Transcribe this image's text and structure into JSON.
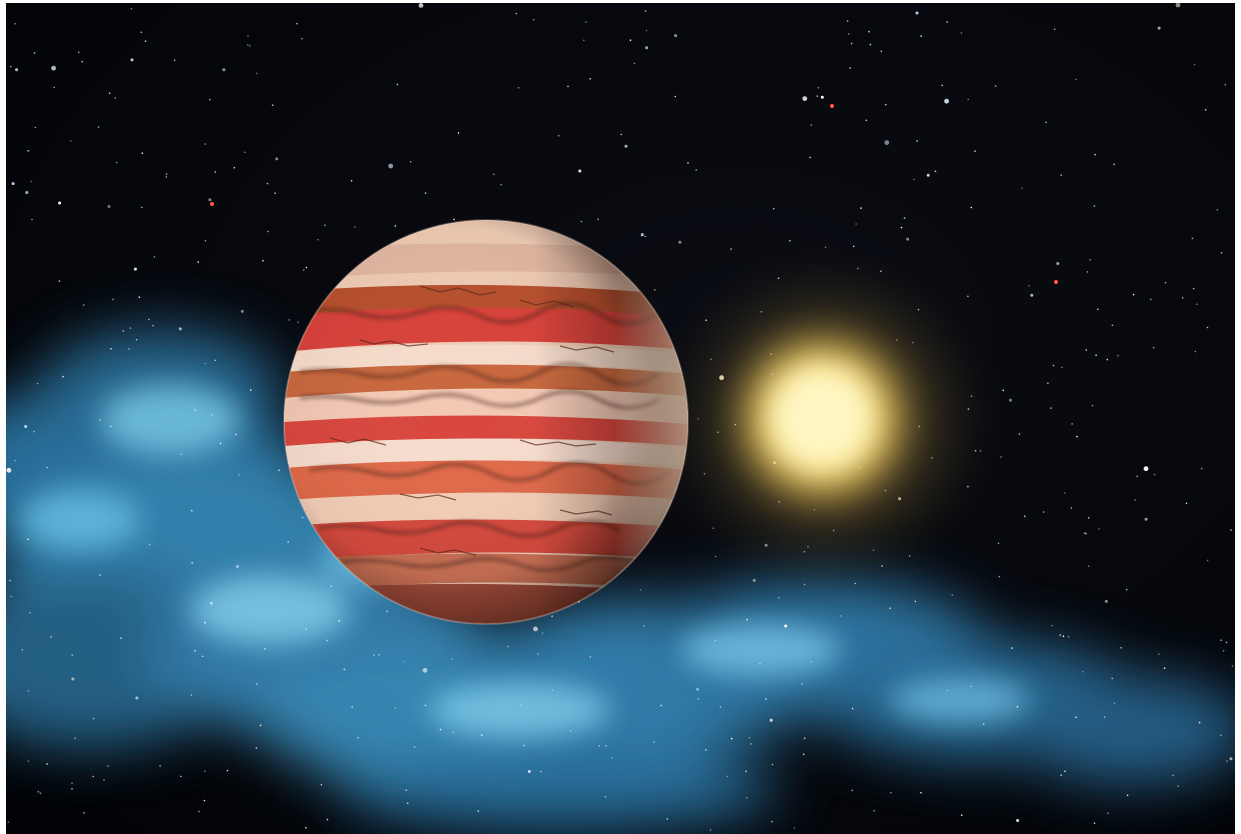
{
  "scene": {
    "kind": "space-illustration",
    "subjects": [
      "gas-giant-planet",
      "star",
      "nebula",
      "starfield"
    ],
    "colors": {
      "space": "#05060a",
      "frame": "#ffffff",
      "nebula_primary": "#4aa6d6",
      "nebula_secondary": "#7fd0ee",
      "star_core": "#fff4b8",
      "star_glow": "#f3c64a",
      "star_halo": "#8a7a3a",
      "planet_cream": "#f6dccb",
      "planet_red": "#d8423a",
      "planet_rust": "#b8502e",
      "planet_dark": "#3a1a12"
    }
  }
}
